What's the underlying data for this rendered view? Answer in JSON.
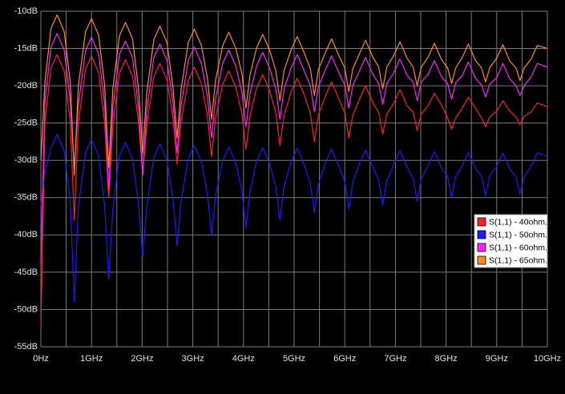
{
  "chart_data": {
    "type": "line",
    "x": [
      0,
      0.08,
      0.2,
      0.32,
      0.46,
      0.58,
      0.66,
      0.74,
      0.88,
      1.0,
      1.14,
      1.26,
      1.34,
      1.42,
      1.55,
      1.67,
      1.81,
      1.93,
      2.01,
      2.09,
      2.23,
      2.35,
      2.49,
      2.61,
      2.69,
      2.77,
      2.91,
      3.03,
      3.17,
      3.29,
      3.37,
      3.45,
      3.59,
      3.71,
      3.85,
      3.97,
      4.05,
      4.13,
      4.26,
      4.38,
      4.52,
      4.64,
      4.72,
      4.8,
      4.94,
      5.06,
      5.2,
      5.32,
      5.4,
      5.48,
      5.62,
      5.74,
      5.88,
      6.0,
      6.08,
      6.16,
      6.29,
      6.41,
      6.55,
      6.67,
      6.75,
      6.83,
      6.97,
      7.09,
      7.23,
      7.35,
      7.43,
      7.51,
      7.65,
      7.77,
      7.91,
      8.03,
      8.11,
      8.19,
      8.32,
      8.44,
      8.58,
      8.7,
      8.78,
      8.86,
      9.0,
      9.12,
      9.26,
      9.38,
      9.46,
      9.54,
      9.68,
      9.8,
      10.0
    ],
    "series": [
      {
        "name": "S(1,1) - 40ohm.",
        "color": "#ff2020",
        "values": [
          -52.5,
          -24.8,
          -17.6,
          -15.8,
          -18.0,
          -24.8,
          -38,
          -25.0,
          -17.8,
          -16.0,
          -18.2,
          -25.0,
          -35,
          -25.5,
          -18.3,
          -16.5,
          -18.7,
          -25.0,
          -32,
          -25.3,
          -18.8,
          -17.0,
          -19.2,
          -24.4,
          -30.5,
          -24.7,
          -19.3,
          -17.5,
          -19.7,
          -24.1,
          -29.5,
          -24.3,
          -19.8,
          -18.0,
          -20.2,
          -23.8,
          -28.5,
          -24.0,
          -20.3,
          -18.5,
          -20.7,
          -23.7,
          -28,
          -24.0,
          -20.8,
          -19.0,
          -21.2,
          -23.7,
          -27.5,
          -23.9,
          -21.3,
          -19.5,
          -21.7,
          -23.6,
          -27,
          -23.9,
          -21.8,
          -20.0,
          -22.2,
          -23.6,
          -26.5,
          -23.8,
          -22.3,
          -20.5,
          -22.7,
          -23.5,
          -26,
          -23.8,
          -22.6,
          -21.0,
          -22.6,
          -24.3,
          -25.8,
          -24.3,
          -23.0,
          -21.5,
          -23.0,
          -24.3,
          -25.5,
          -24.2,
          -23.4,
          -22.0,
          -23.4,
          -24.2,
          -25.2,
          -24.1,
          -23.5,
          -22.3,
          -22.8
        ]
      },
      {
        "name": "S(1,1) - 50ohm.",
        "color": "#1a1aff",
        "values": [
          -36,
          -31.7,
          -28.3,
          -26.5,
          -28.7,
          -35.5,
          -49,
          -36.2,
          -29.0,
          -27.2,
          -29.4,
          -36.2,
          -46,
          -36.6,
          -29.4,
          -27.6,
          -29.8,
          -36.1,
          -43,
          -36.2,
          -29.6,
          -27.8,
          -30.0,
          -35.3,
          -41.5,
          -35.4,
          -29.8,
          -28.0,
          -30.2,
          -34.6,
          -40,
          -34.7,
          -30.0,
          -28.2,
          -30.4,
          -34.1,
          -39,
          -34.1,
          -30.1,
          -28.3,
          -30.5,
          -33.6,
          -38,
          -33.6,
          -30.2,
          -28.4,
          -30.6,
          -33.1,
          -37,
          -33.2,
          -30.3,
          -28.5,
          -30.7,
          -32.9,
          -36.5,
          -32.9,
          -30.4,
          -28.6,
          -30.8,
          -32.7,
          -36,
          -32.7,
          -30.5,
          -28.7,
          -30.9,
          -32.4,
          -35.5,
          -32.5,
          -30.6,
          -28.8,
          -31.0,
          -32.2,
          -35,
          -32.2,
          -30.7,
          -28.9,
          -31.1,
          -32.1,
          -34.7,
          -32.1,
          -30.8,
          -29.0,
          -31.2,
          -32.2,
          -34.5,
          -32.2,
          -30.8,
          -29.0,
          -29.4
        ]
      },
      {
        "name": "S(1,1) - 60ohm.",
        "color": "#ff20ff",
        "values": [
          -44,
          -22.0,
          -14.8,
          -13.0,
          -15.2,
          -22.0,
          -31,
          -22.5,
          -15.3,
          -13.5,
          -15.7,
          -22.5,
          -34,
          -23.0,
          -15.8,
          -14.0,
          -16.2,
          -23.0,
          -32,
          -23.4,
          -16.2,
          -14.4,
          -16.6,
          -22.4,
          -29,
          -22.6,
          -16.6,
          -14.8,
          -17.0,
          -21.5,
          -27,
          -21.7,
          -17.0,
          -15.2,
          -17.4,
          -20.9,
          -25.5,
          -21.0,
          -17.3,
          -15.5,
          -17.7,
          -20.5,
          -24.5,
          -20.5,
          -17.6,
          -15.8,
          -18.0,
          -20.0,
          -23.5,
          -20.1,
          -17.8,
          -16.0,
          -18.2,
          -19.9,
          -23,
          -19.9,
          -18.0,
          -16.2,
          -18.4,
          -19.7,
          -22.5,
          -19.7,
          -18.2,
          -16.4,
          -18.6,
          -19.5,
          -22,
          -19.5,
          -18.4,
          -16.6,
          -18.8,
          -19.7,
          -21.8,
          -19.6,
          -18.6,
          -16.8,
          -19.0,
          -19.9,
          -21.5,
          -19.8,
          -18.9,
          -17.0,
          -19.1,
          -20.0,
          -21.3,
          -20.0,
          -18.8,
          -17.0,
          -17.5
        ]
      },
      {
        "name": "S(1,1) - 65ohm.",
        "color": "#ff8c1a",
        "values": [
          -30,
          -19.5,
          -12.3,
          -10.5,
          -12.7,
          -19.5,
          -32,
          -20.0,
          -12.8,
          -11.0,
          -13.2,
          -20.0,
          -31,
          -20.5,
          -13.3,
          -11.5,
          -13.7,
          -20.5,
          -29,
          -21.0,
          -13.8,
          -12.0,
          -14.2,
          -20.3,
          -27,
          -20.4,
          -14.2,
          -12.4,
          -14.6,
          -19.1,
          -24.5,
          -19.2,
          -14.6,
          -12.8,
          -15.0,
          -18.4,
          -23,
          -18.5,
          -14.9,
          -13.1,
          -15.3,
          -18.0,
          -22,
          -18.0,
          -15.2,
          -13.4,
          -15.6,
          -17.7,
          -21.3,
          -17.8,
          -15.5,
          -13.7,
          -15.9,
          -17.6,
          -20.8,
          -17.7,
          -15.7,
          -13.9,
          -16.1,
          -17.5,
          -20.4,
          -17.5,
          -15.9,
          -14.1,
          -16.3,
          -17.5,
          -20,
          -17.5,
          -16.1,
          -14.3,
          -16.5,
          -17.6,
          -19.7,
          -17.6,
          -16.2,
          -14.4,
          -16.6,
          -17.6,
          -19.5,
          -17.6,
          -16.3,
          -14.5,
          -16.7,
          -17.6,
          -19.3,
          -17.6,
          -16.4,
          -14.6,
          -15.0
        ]
      }
    ],
    "xlim": [
      0,
      10
    ],
    "ylim": [
      -55,
      -10
    ],
    "xticks": [
      {
        "value": 0,
        "label": "0Hz"
      },
      {
        "value": 1,
        "label": "1GHz"
      },
      {
        "value": 2,
        "label": "2GHz"
      },
      {
        "value": 3,
        "label": "3GHz"
      },
      {
        "value": 4,
        "label": "4GHz"
      },
      {
        "value": 5,
        "label": "5GHz"
      },
      {
        "value": 6,
        "label": "6GHz"
      },
      {
        "value": 7,
        "label": "7GHz"
      },
      {
        "value": 8,
        "label": "8GHz"
      },
      {
        "value": 9,
        "label": "9GHz"
      },
      {
        "value": 10,
        "label": "10GHz"
      }
    ],
    "xgrid_minor": [
      0.5,
      1.5,
      2.5,
      3.5,
      4.5,
      5.5,
      6.5,
      7.5,
      8.5,
      9.5
    ],
    "yticks": [
      {
        "value": -10,
        "label": "-10dB"
      },
      {
        "value": -15,
        "label": "-15dB"
      },
      {
        "value": -20,
        "label": "-20dB"
      },
      {
        "value": -25,
        "label": "-25dB"
      },
      {
        "value": -30,
        "label": "-30dB"
      },
      {
        "value": -35,
        "label": "-35dB"
      },
      {
        "value": -40,
        "label": "-40dB"
      },
      {
        "value": -45,
        "label": "-45dB"
      },
      {
        "value": -50,
        "label": "-50dB"
      },
      {
        "value": -55,
        "label": "-55dB"
      }
    ],
    "grid": true,
    "legend": "right"
  }
}
